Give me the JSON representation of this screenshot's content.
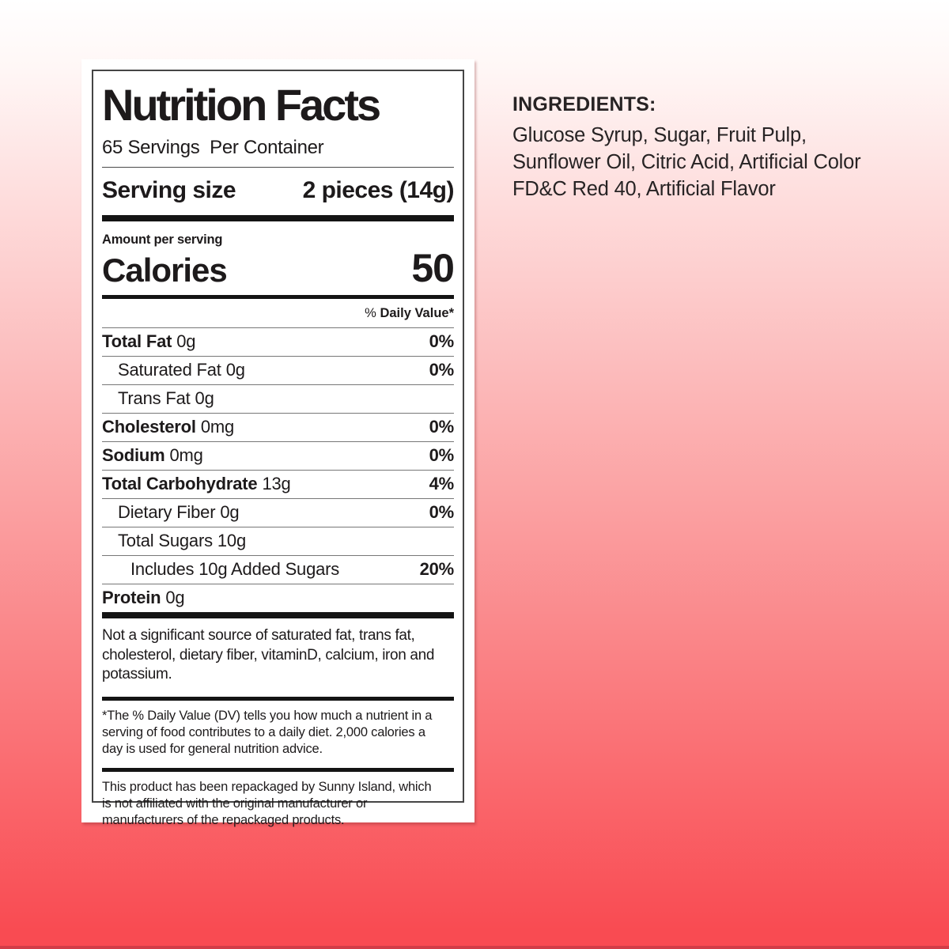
{
  "background": {
    "gradient_top": "#ffffff",
    "gradient_bottom": "#f94b52",
    "bottom_strip": "#d23d47"
  },
  "label": {
    "title": "Nutrition Facts",
    "servings_per_container": "65 Servings  Per Container",
    "serving_size_label": "Serving size",
    "serving_size_value": "2 pieces (14g)",
    "amount_per_serving": "Amount per serving",
    "calories_label": "Calories",
    "calories_value": "50",
    "dv_header_prefix": "% ",
    "dv_header_text": "Daily Value*",
    "rows": [
      {
        "name": "Total Fat",
        "amount": "0g",
        "dv": "0%",
        "bold": true,
        "indent": 0
      },
      {
        "name": "Saturated Fat",
        "amount": "0g",
        "dv": "0%",
        "bold": false,
        "indent": 1
      },
      {
        "name": "Trans Fat",
        "amount": "0g",
        "dv": "",
        "bold": false,
        "indent": 1
      },
      {
        "name": "Cholesterol",
        "amount": "0mg",
        "dv": "0%",
        "bold": true,
        "indent": 0
      },
      {
        "name": "Sodium",
        "amount": "0mg",
        "dv": "0%",
        "bold": true,
        "indent": 0
      },
      {
        "name": "Total Carbohydrate",
        "amount": "13g",
        "dv": "4%",
        "bold": true,
        "indent": 0
      },
      {
        "name": "Dietary Fiber",
        "amount": "0g",
        "dv": "0%",
        "bold": false,
        "indent": 1
      },
      {
        "name": "Total Sugars",
        "amount": "10g",
        "dv": "",
        "bold": false,
        "indent": 1
      },
      {
        "name": "Includes 10g Added Sugars",
        "amount": "",
        "dv": "20%",
        "bold": false,
        "indent": 2
      },
      {
        "name": "Protein",
        "amount": "0g",
        "dv": "",
        "bold": true,
        "indent": 0
      }
    ],
    "not_significant_note": "Not a significant source of saturated fat, trans fat, cholesterol, dietary fiber, vitaminD, calcium, iron and potassium.",
    "daily_value_note": "*The % Daily Value (DV) tells you how much a nutrient in a serving of food contributes to a daily diet. 2,000 calories a day is used for general nutrition advice.",
    "repackaged_note": "This product has been repackaged by Sunny Island, which is not affiliated with the original manufacturer or manufacturers of the repackaged products."
  },
  "ingredients": {
    "heading": "INGREDIENTS:",
    "text": "Glucose Syrup, Sugar, Fruit Pulp, Sunflower Oil, Citric Acid, Artificial Color FD&C Red 40, Artificial Flavor"
  }
}
